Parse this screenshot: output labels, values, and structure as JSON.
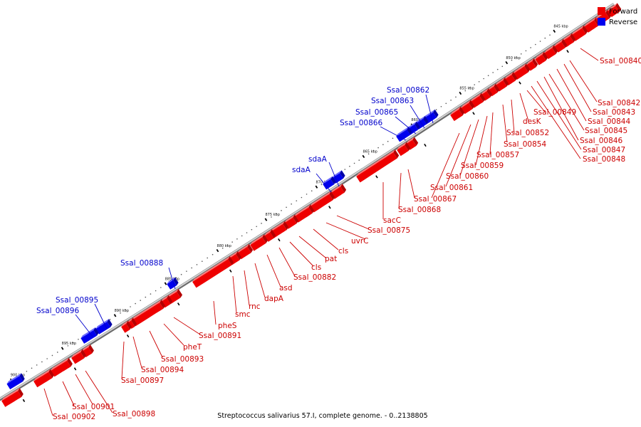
{
  "caption": "Streptococcus salivarius 57.I, complete genome. - 0..2138805",
  "legend": [
    {
      "label": "Forward",
      "color": "#ee0000"
    },
    {
      "label": "Reverse",
      "color": "#0000ee"
    }
  ],
  "colors": {
    "forward": "#ee0000",
    "forward_dark": "#b40000",
    "forward_light": "#ff7a7a",
    "reverse": "#0000ee",
    "reverse_dark": "#0000a8",
    "reverse_light": "#6a6aff",
    "forward_label": "#cc0000",
    "reverse_label": "#0000cc",
    "backbone": "#8a8a8a"
  },
  "ticks": [
    "845 kbp",
    "850 kbp",
    "855 kbp",
    "860 kbp",
    "865 kbp",
    "870 kbp",
    "875 kbp",
    "880 kbp",
    "885 kbp",
    "890 kbp",
    "895 kbp",
    "900 kbp"
  ],
  "forward_labels": [
    "Ssal_00840",
    "Ssal_00842",
    "Ssal_00843",
    "Ssal_00844",
    "Ssal_00845",
    "Ssal_00846",
    "Ssal_00847",
    "Ssal_00848",
    "Ssal_00849",
    "desK",
    "Ssal_00852",
    "Ssal_00854",
    "Ssal_00857",
    "Ssal_00859",
    "Ssal_00860",
    "Ssal_00861",
    "Ssal_00867",
    "Ssal_00868",
    "sacC",
    "Ssal_00875",
    "uvrC",
    "cls",
    "pat",
    "cls",
    "Ssal_00882",
    "asd",
    "dapA",
    "rnc",
    "smc",
    "pheS",
    "Ssal_00891",
    "pheT",
    "Ssal_00893",
    "Ssal_00894",
    "Ssal_00897",
    "Ssal_00898",
    "Ssal_00901",
    "Ssal_00902"
  ],
  "reverse_labels": [
    "Ssal_00862",
    "Ssal_00863",
    "Ssal_00865",
    "Ssal_00866",
    "sdaA",
    "sdaA",
    "Ssal_00888",
    "Ssal_00895",
    "Ssal_00896"
  ]
}
